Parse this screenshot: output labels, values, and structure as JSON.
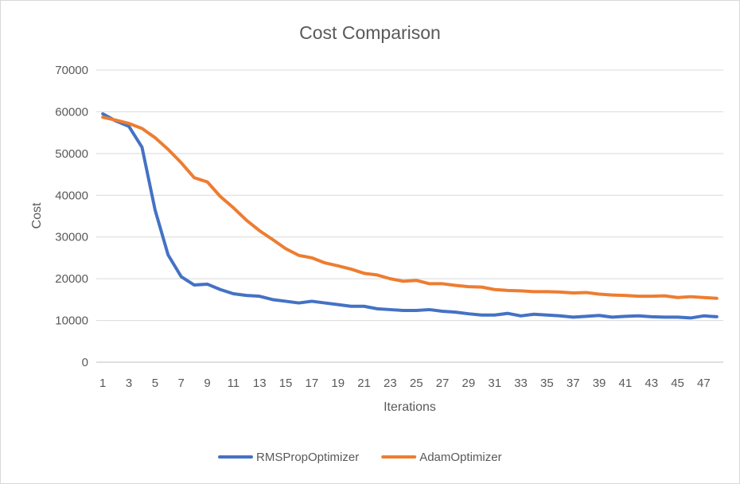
{
  "chart_data": {
    "type": "line",
    "title": "Cost Comparison",
    "xlabel": "Iterations",
    "ylabel": "Cost",
    "ylim": [
      0,
      70000
    ],
    "yticks": [
      0,
      10000,
      20000,
      30000,
      40000,
      50000,
      60000,
      70000
    ],
    "xtick_labels": [
      "1",
      "3",
      "5",
      "7",
      "9",
      "11",
      "13",
      "15",
      "17",
      "19",
      "21",
      "23",
      "25",
      "27",
      "29",
      "31",
      "33",
      "35",
      "37",
      "39",
      "41",
      "43",
      "45",
      "47"
    ],
    "grid": "horizontal",
    "legend": "bottom",
    "x": [
      1,
      2,
      3,
      4,
      5,
      6,
      7,
      8,
      9,
      10,
      11,
      12,
      13,
      14,
      15,
      16,
      17,
      18,
      19,
      20,
      21,
      22,
      23,
      24,
      25,
      26,
      27,
      28,
      29,
      30,
      31,
      32,
      33,
      34,
      35,
      36,
      37,
      38,
      39,
      40,
      41,
      42,
      43,
      44,
      45,
      46,
      47,
      48
    ],
    "series": [
      {
        "name": "RMSPropOptimizer",
        "color": "#4472c4",
        "values": [
          59500,
          57800,
          56500,
          51500,
          36500,
          25700,
          20500,
          18500,
          18700,
          17400,
          16400,
          16000,
          15800,
          15000,
          14600,
          14200,
          14600,
          14200,
          13800,
          13400,
          13400,
          12800,
          12600,
          12400,
          12400,
          12600,
          12200,
          12000,
          11600,
          11300,
          11300,
          11700,
          11100,
          11500,
          11300,
          11100,
          10800,
          11000,
          11200,
          10800,
          11000,
          11100,
          10900,
          10800,
          10800,
          10600,
          11100,
          10900
        ]
      },
      {
        "name": "AdamOptimizer",
        "color": "#ed7d31",
        "values": [
          58700,
          58000,
          57200,
          56000,
          53800,
          51000,
          47800,
          44200,
          43200,
          39700,
          37000,
          34000,
          31500,
          29400,
          27200,
          25600,
          25000,
          23800,
          23100,
          22300,
          21300,
          20900,
          20000,
          19400,
          19600,
          18800,
          18800,
          18400,
          18100,
          18000,
          17400,
          17200,
          17100,
          16900,
          16900,
          16800,
          16600,
          16700,
          16300,
          16100,
          16000,
          15800,
          15800,
          15900,
          15500,
          15700,
          15500,
          15300
        ]
      }
    ]
  }
}
